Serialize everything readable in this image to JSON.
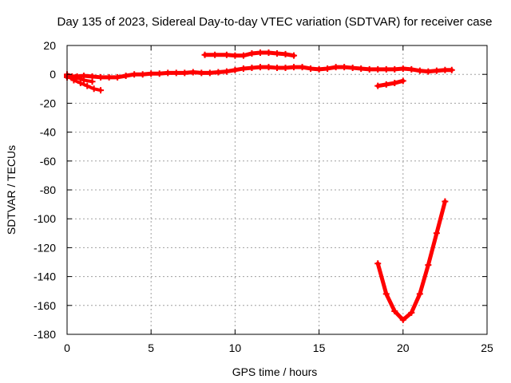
{
  "chart_data": {
    "type": "scatter",
    "title": "Day 135 of 2023, Sidereal Day-to-day VTEC variation (SDTVAR) for receiver case",
    "xlabel": "GPS time / hours",
    "ylabel": "SDTVAR / TECUs",
    "xlim": [
      0,
      25
    ],
    "ylim": [
      -180,
      20
    ],
    "xticks": [
      0,
      5,
      10,
      15,
      20,
      25
    ],
    "yticks": [
      20,
      0,
      -20,
      -40,
      -60,
      -80,
      -100,
      -120,
      -140,
      -160,
      -180
    ],
    "grid": true,
    "series": [
      {
        "name": "main band",
        "color": "#ff0000",
        "points": [
          [
            0,
            -2
          ],
          [
            0.3,
            -1.5
          ],
          [
            0.6,
            -1.5
          ],
          [
            1,
            -1
          ],
          [
            1.5,
            -1.5
          ],
          [
            2,
            -2
          ],
          [
            2.5,
            -2
          ],
          [
            3,
            -2
          ],
          [
            3.5,
            -1
          ],
          [
            4,
            0
          ],
          [
            4.5,
            0
          ],
          [
            5,
            0.5
          ],
          [
            5.5,
            0.5
          ],
          [
            6,
            1
          ],
          [
            6.5,
            1
          ],
          [
            7,
            1
          ],
          [
            7.5,
            1.5
          ],
          [
            8,
            1
          ],
          [
            8.5,
            1
          ],
          [
            9,
            1.5
          ],
          [
            9.5,
            2
          ],
          [
            10,
            3
          ],
          [
            10.5,
            4
          ],
          [
            11,
            4.5
          ],
          [
            11.5,
            5
          ],
          [
            12,
            5
          ],
          [
            12.5,
            4.5
          ],
          [
            13,
            4.5
          ],
          [
            13.5,
            5
          ],
          [
            14,
            5
          ],
          [
            14.5,
            4
          ],
          [
            15,
            3.5
          ],
          [
            15.5,
            4
          ],
          [
            16,
            5
          ],
          [
            16.5,
            5
          ],
          [
            17,
            4.5
          ],
          [
            17.5,
            4
          ],
          [
            18,
            3.5
          ],
          [
            18.5,
            3.5
          ],
          [
            19,
            3.5
          ],
          [
            19.5,
            3.5
          ],
          [
            20,
            4
          ],
          [
            20.5,
            3.5
          ],
          [
            21,
            2.5
          ],
          [
            21.5,
            2
          ],
          [
            22,
            2.5
          ],
          [
            22.5,
            3
          ],
          [
            22.9,
            3
          ]
        ]
      },
      {
        "name": "upper band",
        "color": "#ff0000",
        "points": [
          [
            8.2,
            13.5
          ],
          [
            8.8,
            13.5
          ],
          [
            9.5,
            13.5
          ],
          [
            10,
            13
          ],
          [
            10.5,
            13
          ],
          [
            11,
            14.5
          ],
          [
            11.5,
            15
          ],
          [
            12,
            15
          ],
          [
            12.5,
            14.5
          ],
          [
            13,
            14
          ],
          [
            13.5,
            13
          ]
        ]
      },
      {
        "name": "early drops",
        "color": "#ff0000",
        "points": [
          [
            0,
            -1
          ],
          [
            0.4,
            -4
          ],
          [
            0.8,
            -6
          ],
          [
            1.2,
            -8
          ],
          [
            1.6,
            -10
          ],
          [
            2,
            -11
          ],
          [
            0,
            0
          ],
          [
            0.5,
            -2
          ],
          [
            1,
            -4
          ],
          [
            1.5,
            -5
          ]
        ]
      },
      {
        "name": "short segment",
        "color": "#ff0000",
        "points": [
          [
            18.5,
            -8
          ],
          [
            19,
            -7
          ],
          [
            19.5,
            -6
          ],
          [
            20,
            -4.5
          ]
        ]
      },
      {
        "name": "dip",
        "color": "#ff0000",
        "points": [
          [
            18.5,
            -131
          ],
          [
            19,
            -152
          ],
          [
            19.5,
            -164
          ],
          [
            20,
            -170
          ],
          [
            20.5,
            -165
          ],
          [
            21,
            -152
          ],
          [
            21.5,
            -132
          ],
          [
            22,
            -110
          ],
          [
            22.5,
            -88
          ]
        ]
      }
    ]
  }
}
